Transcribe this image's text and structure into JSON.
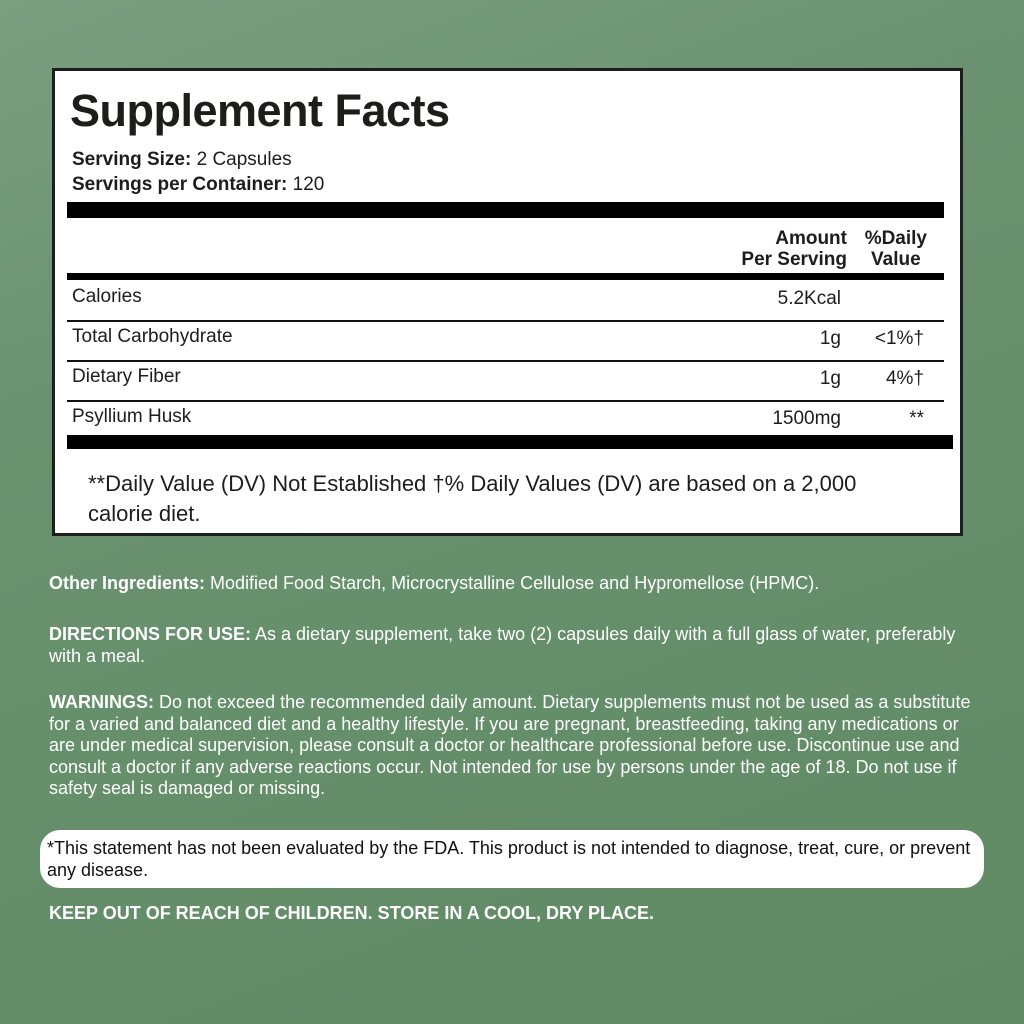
{
  "facts": {
    "title": "Supplement Facts",
    "serving_size_label": "Serving Size:",
    "serving_size": " 2 Capsules",
    "servings_label": "Servings per Container:",
    "servings": " 120",
    "col_amount": [
      "Amount",
      "Per Serving"
    ],
    "col_dv": [
      "%Daily",
      "Value"
    ],
    "rows": [
      {
        "name": "Calories",
        "amount": "5.2Kcal",
        "dv": ""
      },
      {
        "name": "Total Carbohydrate",
        "amount": "1g",
        "dv": "<1%†"
      },
      {
        "name": "Dietary Fiber",
        "amount": "1g",
        "dv": "4%†"
      },
      {
        "name": "Psyllium Husk",
        "amount": "1500mg",
        "dv": "**"
      }
    ],
    "footnote": "**Daily Value (DV) Not Established †% Daily Values (DV) are based on a 2,000 calorie diet."
  },
  "other": {
    "label": "Other Ingredients:",
    "text": " Modified Food Starch, Microcrystalline Cellulose and Hypromellose (HPMC)."
  },
  "directions": {
    "label": "DIRECTIONS FOR USE:",
    "text": " As a dietary supplement, take two (2) capsules daily with a full glass of water, preferably with a meal."
  },
  "warnings": {
    "label": "WARNINGS:",
    "text": " Do not exceed the recommended daily amount. Dietary supplements must not be used as a substitute for a varied and balanced diet and a healthy lifestyle. If you are pregnant, breastfeeding, taking any medications or are under medical supervision, please consult a doctor or healthcare professional before use. Discontinue use and consult a doctor if any adverse reactions occur. Not intended for use by persons under the age of 18. Do not use if safety seal is damaged or missing."
  },
  "fda": "*This statement has not been evaluated by the FDA. This product is not intended to diagnose, treat, cure, or prevent any disease.",
  "keep": "KEEP OUT OF REACH OF CHILDREN. STORE IN A COOL, DRY PLACE.",
  "colors": {
    "background": "#648e68",
    "panel": "#ffffff",
    "text": "#1f1c1c"
  }
}
